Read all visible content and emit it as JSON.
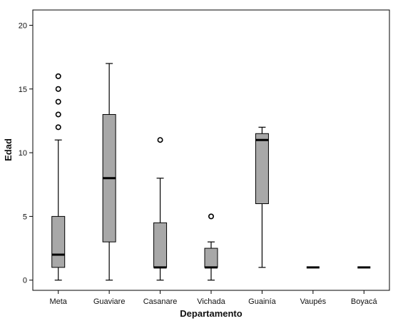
{
  "chart_data": {
    "type": "box",
    "title": "",
    "xlabel": "Departamento",
    "ylabel": "Edad",
    "ylim": [
      -0.8,
      21.2
    ],
    "yticks": [
      0,
      5,
      10,
      15,
      20
    ],
    "grid": false,
    "legend": "none",
    "categories": [
      "Meta",
      "Guaviare",
      "Casanare",
      "Vichada",
      "Guainía",
      "Vaupés",
      "Boyacá"
    ],
    "boxes": [
      {
        "min": 0,
        "q1": 1,
        "median": 2,
        "q3": 5,
        "max": 11,
        "outliers": [
          12,
          13,
          14,
          15,
          16
        ]
      },
      {
        "min": 0,
        "q1": 3,
        "median": 8,
        "q3": 13,
        "max": 17,
        "outliers": []
      },
      {
        "min": 0,
        "q1": 1,
        "median": 1,
        "q3": 4.5,
        "max": 8,
        "outliers": [
          11
        ]
      },
      {
        "min": 0,
        "q1": 1,
        "median": 1,
        "q3": 2.5,
        "max": 3,
        "outliers": [
          5
        ]
      },
      {
        "min": 1,
        "q1": 6,
        "median": 11,
        "q3": 11.5,
        "max": 12,
        "outliers": []
      },
      {
        "min": 1,
        "q1": 1,
        "median": 1,
        "q3": 1,
        "max": 1,
        "outliers": []
      },
      {
        "min": 1,
        "q1": 1,
        "median": 1,
        "q3": 1,
        "max": 1,
        "outliers": []
      }
    ],
    "colors": {
      "box_fill": "#a8a8a8",
      "line": "#000000",
      "background": "#ffffff"
    }
  }
}
